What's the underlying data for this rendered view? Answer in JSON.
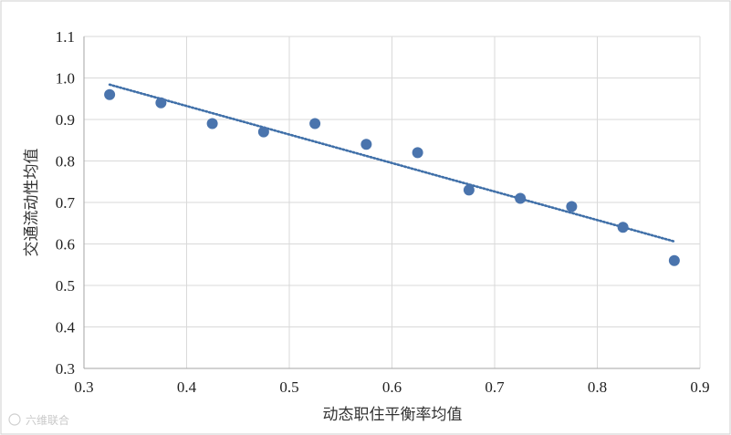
{
  "chart_data": {
    "type": "scatter",
    "xlabel": "动态职住平衡率均值",
    "ylabel": "交通流动性均值",
    "xlim": [
      0.3,
      0.9
    ],
    "ylim": [
      0.3,
      1.1
    ],
    "x_ticks": [
      "0.3",
      "0.4",
      "0.5",
      "0.6",
      "0.7",
      "0.8",
      "0.9"
    ],
    "y_ticks": [
      "0.3",
      "0.4",
      "0.5",
      "0.6",
      "0.7",
      "0.8",
      "0.9",
      "1.0",
      "1.1"
    ],
    "grid": true,
    "legend": "none",
    "series": [
      {
        "x": [
          0.325,
          0.375,
          0.425,
          0.475,
          0.525,
          0.575,
          0.625,
          0.675,
          0.725,
          0.775,
          0.825,
          0.875
        ],
        "y": [
          0.96,
          0.94,
          0.89,
          0.87,
          0.89,
          0.84,
          0.82,
          0.73,
          0.71,
          0.69,
          0.64,
          0.56
        ],
        "color": "#4a74ad"
      }
    ],
    "trendline": {
      "style": "dotted",
      "color": "#3f6fa8",
      "from": [
        0.325,
        0.984
      ],
      "to": [
        0.875,
        0.606
      ]
    }
  },
  "watermark": "六维联合"
}
